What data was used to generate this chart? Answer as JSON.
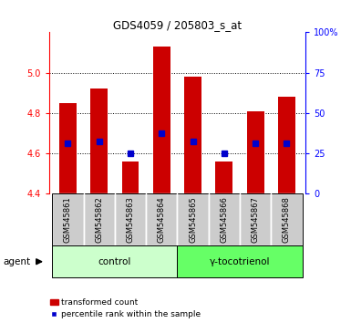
{
  "title": "GDS4059 / 205803_s_at",
  "samples": [
    "GSM545861",
    "GSM545862",
    "GSM545863",
    "GSM545864",
    "GSM545865",
    "GSM545866",
    "GSM545867",
    "GSM545868"
  ],
  "bar_tops": [
    4.85,
    4.92,
    4.56,
    5.13,
    4.98,
    4.56,
    4.81,
    4.88
  ],
  "bar_bottom": 4.4,
  "blue_y": [
    4.65,
    4.66,
    4.6,
    4.7,
    4.66,
    4.6,
    4.65,
    4.65
  ],
  "ylim": [
    4.4,
    5.2
  ],
  "y2lim": [
    0,
    100
  ],
  "yticks": [
    4.4,
    4.6,
    4.8,
    5.0
  ],
  "y2ticks": [
    0,
    25,
    50,
    75,
    100
  ],
  "bar_color": "#cc0000",
  "blue_color": "#0000cc",
  "control_label": "control",
  "treatment_label": "γ-tocotrienol",
  "agent_label": "agent",
  "legend_bar": "transformed count",
  "legend_dot": "percentile rank within the sample",
  "control_bg": "#ccffcc",
  "treatment_bg": "#66ff66",
  "sample_bg": "#cccccc",
  "panel_bg": "#ffffff"
}
